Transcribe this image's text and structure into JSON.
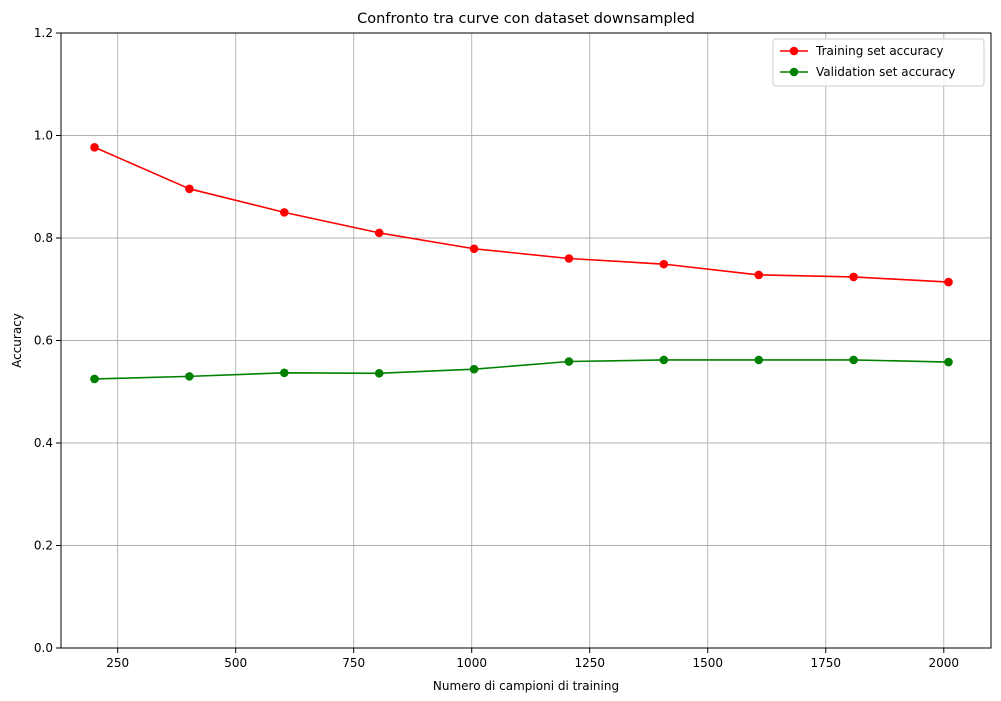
{
  "chart_data": {
    "type": "line",
    "title": "Confronto tra curve con dataset downsampled",
    "xlabel": "Numero di campioni di training",
    "ylabel": "Accuracy",
    "xlim": [
      130,
      2100
    ],
    "ylim": [
      0.0,
      1.2
    ],
    "xticks": [
      250,
      500,
      750,
      1000,
      1250,
      1500,
      1750,
      2000
    ],
    "yticks": [
      0.0,
      0.2,
      0.4,
      0.6,
      0.8,
      1.0,
      1.2
    ],
    "grid": true,
    "legend_position": "top-right",
    "x": [
      201,
      402,
      603,
      804,
      1005,
      1206,
      1407,
      1608,
      1809,
      2010
    ],
    "series": [
      {
        "name": "Training set accuracy",
        "color": "#ff0000",
        "values": [
          0.977,
          0.896,
          0.85,
          0.81,
          0.779,
          0.76,
          0.749,
          0.728,
          0.724,
          0.714
        ]
      },
      {
        "name": "Validation set accuracy",
        "color": "#008000",
        "values": [
          0.525,
          0.53,
          0.537,
          0.536,
          0.544,
          0.559,
          0.562,
          0.562,
          0.562,
          0.558
        ]
      }
    ]
  }
}
